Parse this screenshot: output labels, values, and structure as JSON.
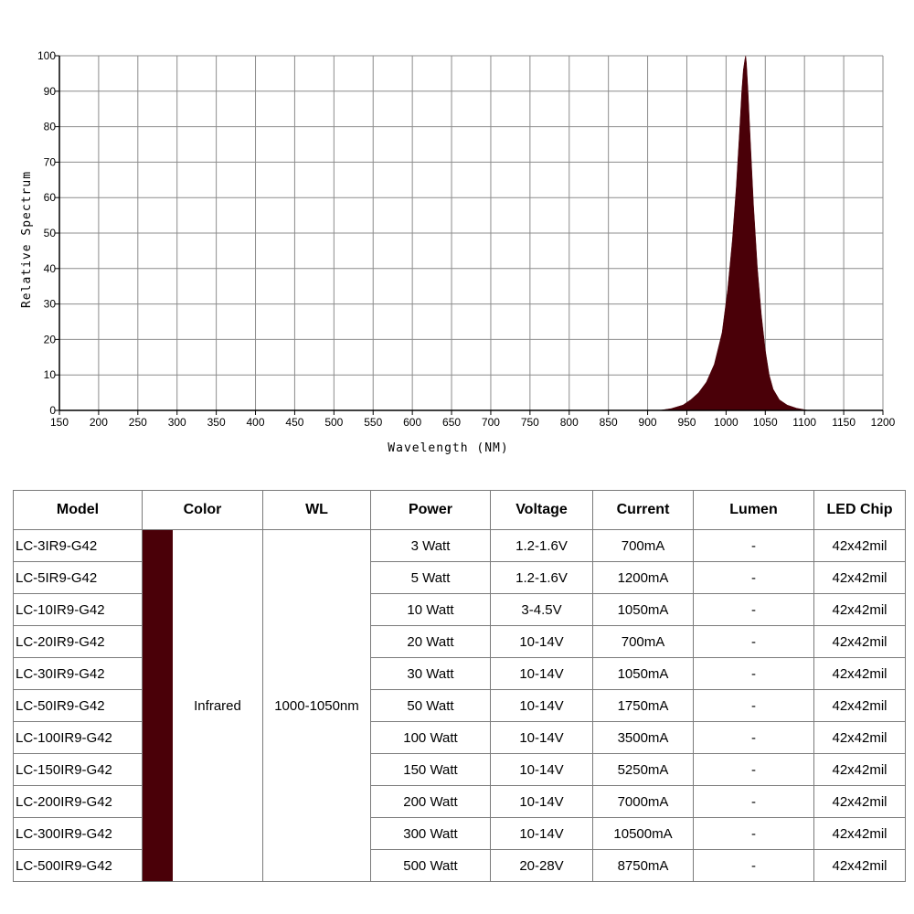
{
  "chart_data": {
    "type": "area",
    "xlabel": "Wavelength (NM)",
    "ylabel": "Relative Spectrum",
    "xlim": [
      150,
      1200
    ],
    "ylim": [
      0,
      100
    ],
    "xticks": [
      "150",
      "200",
      "250",
      "300",
      "350",
      "400",
      "450",
      "500",
      "550",
      "600",
      "650",
      "700",
      "750",
      "800",
      "850",
      "900",
      "950",
      "1000",
      "1050",
      "1100",
      "1150",
      "1200"
    ],
    "yticks": [
      "0",
      "10",
      "20",
      "30",
      "40",
      "50",
      "60",
      "70",
      "80",
      "90",
      "100"
    ],
    "grid": true,
    "color": "#4a0008",
    "x": [
      915,
      930,
      945,
      955,
      965,
      975,
      985,
      995,
      1002,
      1008,
      1013,
      1017,
      1020,
      1022,
      1024,
      1025,
      1026,
      1028,
      1031,
      1035,
      1040,
      1045,
      1050,
      1055,
      1060,
      1068,
      1078,
      1090,
      1100,
      1105
    ],
    "y": [
      0,
      0.5,
      1.5,
      3,
      5,
      8,
      13,
      22,
      34,
      48,
      63,
      78,
      90,
      96,
      99,
      100,
      98,
      90,
      76,
      58,
      40,
      27,
      17,
      10,
      6,
      3,
      1.5,
      0.6,
      0.2,
      0
    ]
  },
  "table": {
    "headers": {
      "model": "Model",
      "color": "Color",
      "wl": "WL",
      "power": "Power",
      "voltage": "Voltage",
      "current": "Current",
      "lumen": "Lumen",
      "chip": "LED Chip"
    },
    "color_label": "Infrared",
    "wl_value": "1000-1050nm",
    "swatch_color": "#4a0008",
    "rows": [
      {
        "model": "LC-3IR9-G42",
        "power": "3 Watt",
        "voltage": "1.2-1.6V",
        "current": "700mA",
        "lumen": "-",
        "chip": "42x42mil"
      },
      {
        "model": "LC-5IR9-G42",
        "power": "5 Watt",
        "voltage": "1.2-1.6V",
        "current": "1200mA",
        "lumen": "-",
        "chip": "42x42mil"
      },
      {
        "model": "LC-10IR9-G42",
        "power": "10 Watt",
        "voltage": "3-4.5V",
        "current": "1050mA",
        "lumen": "-",
        "chip": "42x42mil"
      },
      {
        "model": "LC-20IR9-G42",
        "power": "20 Watt",
        "voltage": "10-14V",
        "current": "700mA",
        "lumen": "-",
        "chip": "42x42mil"
      },
      {
        "model": "LC-30IR9-G42",
        "power": "30 Watt",
        "voltage": "10-14V",
        "current": "1050mA",
        "lumen": "-",
        "chip": "42x42mil"
      },
      {
        "model": "LC-50IR9-G42",
        "power": "50 Watt",
        "voltage": "10-14V",
        "current": "1750mA",
        "lumen": "-",
        "chip": "42x42mil"
      },
      {
        "model": "LC-100IR9-G42",
        "power": "100 Watt",
        "voltage": "10-14V",
        "current": "3500mA",
        "lumen": "-",
        "chip": "42x42mil"
      },
      {
        "model": "LC-150IR9-G42",
        "power": "150 Watt",
        "voltage": "10-14V",
        "current": "5250mA",
        "lumen": "-",
        "chip": "42x42mil"
      },
      {
        "model": "LC-200IR9-G42",
        "power": "200 Watt",
        "voltage": "10-14V",
        "current": "7000mA",
        "lumen": "-",
        "chip": "42x42mil"
      },
      {
        "model": "LC-300IR9-G42",
        "power": "300 Watt",
        "voltage": "10-14V",
        "current": "10500mA",
        "lumen": "-",
        "chip": "42x42mil"
      },
      {
        "model": "LC-500IR9-G42",
        "power": "500 Watt",
        "voltage": "20-28V",
        "current": "8750mA",
        "lumen": "-",
        "chip": "42x42mil"
      }
    ]
  }
}
